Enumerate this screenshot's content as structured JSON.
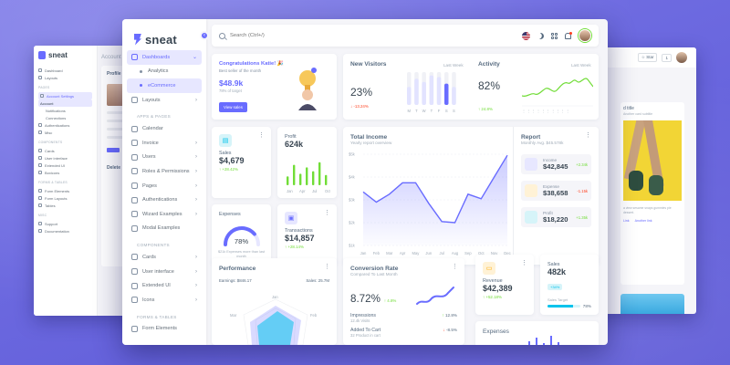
{
  "back_left": {
    "brand": "sneat",
    "nav": [
      "Dashboard",
      "Layouts"
    ],
    "head_pages": "PAGES",
    "account_settings": "Account Settings",
    "subs": [
      "Account",
      "Notifications",
      "Connections"
    ],
    "more": [
      "Authentications",
      "Misc"
    ],
    "head_components": "COMPONENTS",
    "comp_items": [
      "Cards",
      "User interface",
      "Extended UI",
      "Boxicons"
    ],
    "head_forms": "FORMS & TABLES",
    "form_items": [
      "Form Elements",
      "Form Layouts",
      "Tables"
    ],
    "head_misc": "MISC",
    "misc_items": [
      "Support",
      "Documentation"
    ],
    "crumb": "Account",
    "card_title": "Profile",
    "tab_label": "Delete"
  },
  "back_right": {
    "star": "Star",
    "star_count": "1",
    "card_title": "d title",
    "card_sub": "Another card subtitle",
    "card_text": "a view sesame snaps gummies pie dessert.",
    "link_a": "Link",
    "link_b": "Another link"
  },
  "app": {
    "brand": "sneat",
    "collapse_icon": "‹",
    "search_placeholder": "Search (Ctrl+/)"
  },
  "sidebar": {
    "dashboards": "Dashboards",
    "sub_analytics": "Analytics",
    "sub_ecommerce": "eCommerce",
    "layouts": "Layouts",
    "head_apps": "APPS & PAGES",
    "apps": [
      "Calendar",
      "Invoice",
      "Users",
      "Roles & Permissions",
      "Pages",
      "Authentications",
      "Wizard Examples",
      "Modal Examples"
    ],
    "head_components": "COMPONENTS",
    "components": [
      "Cards",
      "User interface",
      "Extended UI",
      "Icons"
    ],
    "head_forms": "FORMS & TABLES",
    "forms": [
      "Form Elements"
    ]
  },
  "congrats": {
    "title": "Congratulations Katie! 🎉",
    "sub": "Best seller of the month",
    "amount": "$48.9k",
    "target": "78% of target",
    "button": "View sales"
  },
  "new_visitors": {
    "title": "New Visitors",
    "period": "Last Week",
    "value": "23%",
    "change": "-13.24%",
    "days": [
      "M",
      "T",
      "W",
      "T",
      "F",
      "S",
      "S"
    ],
    "bars": [
      0.55,
      0.8,
      0.7,
      0.9,
      0.85,
      0.65,
      0.55
    ],
    "highlight_index": 5
  },
  "activity": {
    "title": "Activity",
    "period": "Last Week",
    "value": "82%",
    "change": "24.8%"
  },
  "sales_card": {
    "label": "Sales",
    "value": "$4,679",
    "change": "+28.42%"
  },
  "profit_card": {
    "label": "Profit",
    "value": "624k",
    "months": [
      "Jan",
      "Apr",
      "Jul",
      "Oct"
    ],
    "bars": [
      0.35,
      0.8,
      0.45,
      0.7,
      0.55,
      0.9,
      0.4
    ]
  },
  "total_income": {
    "title": "Total Income",
    "sub": "Yearly report overview",
    "chart_data": {
      "type": "area",
      "categories": [
        "Jan",
        "Feb",
        "Mar",
        "Apr",
        "May",
        "Jun",
        "Jul",
        "Aug",
        "Sep",
        "Oct",
        "Nov",
        "Dec"
      ],
      "values": [
        3350,
        2900,
        3250,
        3750,
        3750,
        2850,
        2050,
        2000,
        3250,
        3050,
        4000,
        4950
      ],
      "ylabels": [
        "$1k",
        "$2k",
        "$3k",
        "$4k",
        "$5k"
      ],
      "ylim": [
        1000,
        5000
      ]
    }
  },
  "report": {
    "title": "Report",
    "sub": "Monthly Avg. $45.578k",
    "items": [
      {
        "label": "Income",
        "value": "$42,845",
        "change": "+2.34k"
      },
      {
        "label": "Expense",
        "value": "$38,658",
        "change": "-1.15k"
      },
      {
        "label": "Profit",
        "value": "$18,220",
        "change": "+1.35k"
      }
    ]
  },
  "expenses_card": {
    "title": "Expenses",
    "value": "78%",
    "progress": 0.78,
    "note": "$21k Expenses more than last month"
  },
  "transactions_card": {
    "label": "Transactions",
    "value": "$14,857",
    "change": "+28.14%"
  },
  "performance": {
    "title": "Performance",
    "earnings": "Earnings: $846.17",
    "sales": "Sales: 25.7M",
    "labels": [
      "Jan",
      "Feb",
      "Mar"
    ]
  },
  "conversion": {
    "title": "Conversion Rate",
    "sub": "Compared To Last Month",
    "value": "8.72%",
    "change": "4.8%",
    "rows": [
      {
        "name": "Impressions",
        "sub": "12.4k Visits",
        "change": "12.8%"
      },
      {
        "name": "Added To Cart",
        "sub": "32 Product in cart",
        "change": "-8.5%"
      }
    ]
  },
  "revenue_card": {
    "label": "Revenue",
    "value": "$42,389",
    "change": "+52.18%"
  },
  "sales_target": {
    "label": "Sales",
    "value": "482k",
    "badge": "+34%",
    "target_label": "Sales Target",
    "target_value": "78%",
    "progress": 0.78
  },
  "expenses_bottom": {
    "title": "Expenses"
  },
  "colors": {
    "primary": "#696cff",
    "success": "#71dd37",
    "danger": "#ff3e1d",
    "warning": "#ffab00",
    "info": "#03c3ec"
  }
}
